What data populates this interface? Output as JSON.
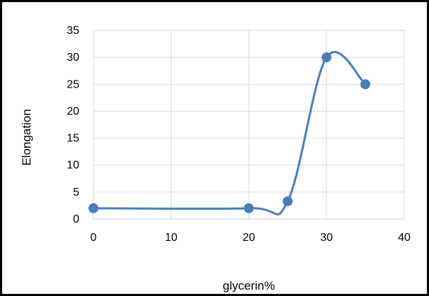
{
  "chart_data": {
    "type": "line",
    "title": "",
    "xlabel": "glycerin%",
    "ylabel": "Elongation",
    "xlim": [
      0,
      40
    ],
    "ylim": [
      0,
      35
    ],
    "x_ticks": [
      0,
      10,
      20,
      30,
      40
    ],
    "y_ticks": [
      0,
      5,
      10,
      15,
      20,
      25,
      30,
      35
    ],
    "grid": true,
    "smooth": true,
    "legend": "none",
    "series": [
      {
        "color": "#4a7ebb",
        "x": [
          0,
          20,
          25,
          30,
          35
        ],
        "y": [
          2,
          2,
          3.3,
          30,
          25
        ]
      }
    ]
  }
}
